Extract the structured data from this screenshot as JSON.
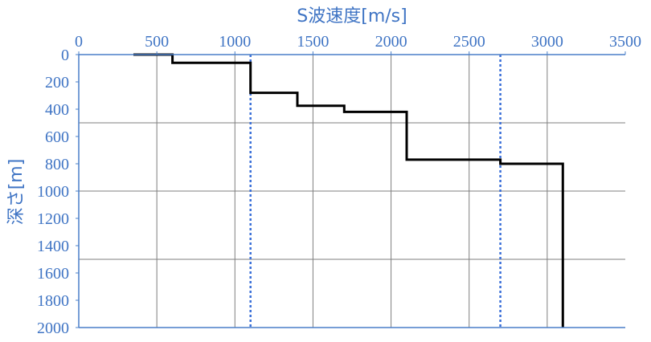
{
  "chart_data": {
    "type": "line",
    "title": "",
    "xlabel": "S波速度[m/s]",
    "ylabel": "深さ[m]",
    "x_axis_position": "top",
    "y_axis_inverted": true,
    "xlim": [
      0,
      3500
    ],
    "ylim": [
      0,
      2000
    ],
    "x_ticks": [
      "0",
      "500",
      "1000",
      "1500",
      "2000",
      "2500",
      "3000",
      "3500"
    ],
    "y_ticks": [
      "0",
      "200",
      "400",
      "600",
      "800",
      "1000",
      "1200",
      "1400",
      "1600",
      "1800",
      "2000"
    ],
    "x_gridlines": [
      500,
      1000,
      1500,
      2000,
      2500,
      3000
    ],
    "y_gridlines": [
      500,
      1000,
      1500
    ],
    "series": [
      {
        "style": "step",
        "color": "#000000",
        "points": [
          [
            350,
            0
          ],
          [
            600,
            0
          ],
          [
            600,
            60
          ],
          [
            1100,
            60
          ],
          [
            1100,
            280
          ],
          [
            1400,
            280
          ],
          [
            1400,
            375
          ],
          [
            1700,
            375
          ],
          [
            1700,
            420
          ],
          [
            2100,
            420
          ],
          [
            2100,
            770
          ],
          [
            2700,
            770
          ],
          [
            2700,
            800
          ],
          [
            3100,
            800
          ],
          [
            3100,
            2000
          ]
        ]
      }
    ],
    "reference_lines": [
      {
        "x": 1100,
        "color": "#3a6fd8",
        "style": "dotted"
      },
      {
        "x": 2700,
        "color": "#3a6fd8",
        "style": "dotted"
      }
    ]
  }
}
